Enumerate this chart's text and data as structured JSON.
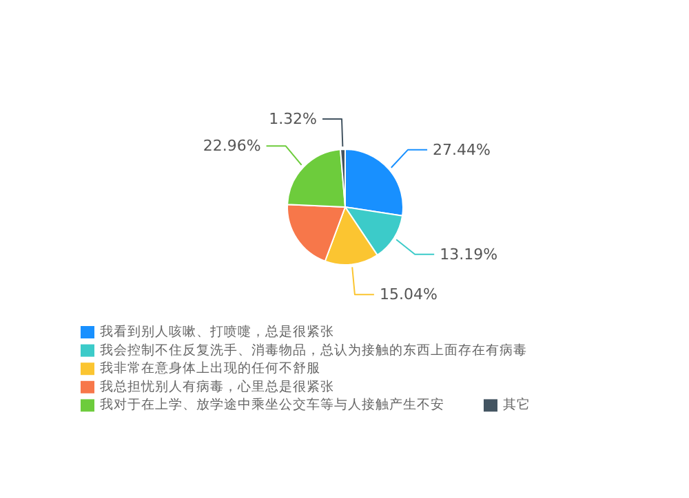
{
  "chart_data": {
    "type": "pie",
    "categories": [
      "我看到别人咳嗽、打喷嚏，总是很紧张",
      "我会控制不住反复洗手、消毒物品，总认为接触的东西上面存在有病毒",
      "我非常在意身体上出现的任何不舒服",
      "我总担忧别人有病毒，心里总是很紧张",
      "我对于在上学、放学途中乘坐公交车等与人接触产生不安",
      "其它"
    ],
    "values": [
      27.44,
      13.19,
      15.04,
      20.05,
      22.96,
      1.32
    ],
    "colors": [
      "#1890ff",
      "#3ccbc9",
      "#fbc531",
      "#f7774a",
      "#6dcc3c",
      "#435461"
    ],
    "value_labels": [
      "27.44%",
      "13.19%",
      "15.04%",
      null,
      "22.96%",
      "1.32%"
    ],
    "legend": "bottom"
  }
}
